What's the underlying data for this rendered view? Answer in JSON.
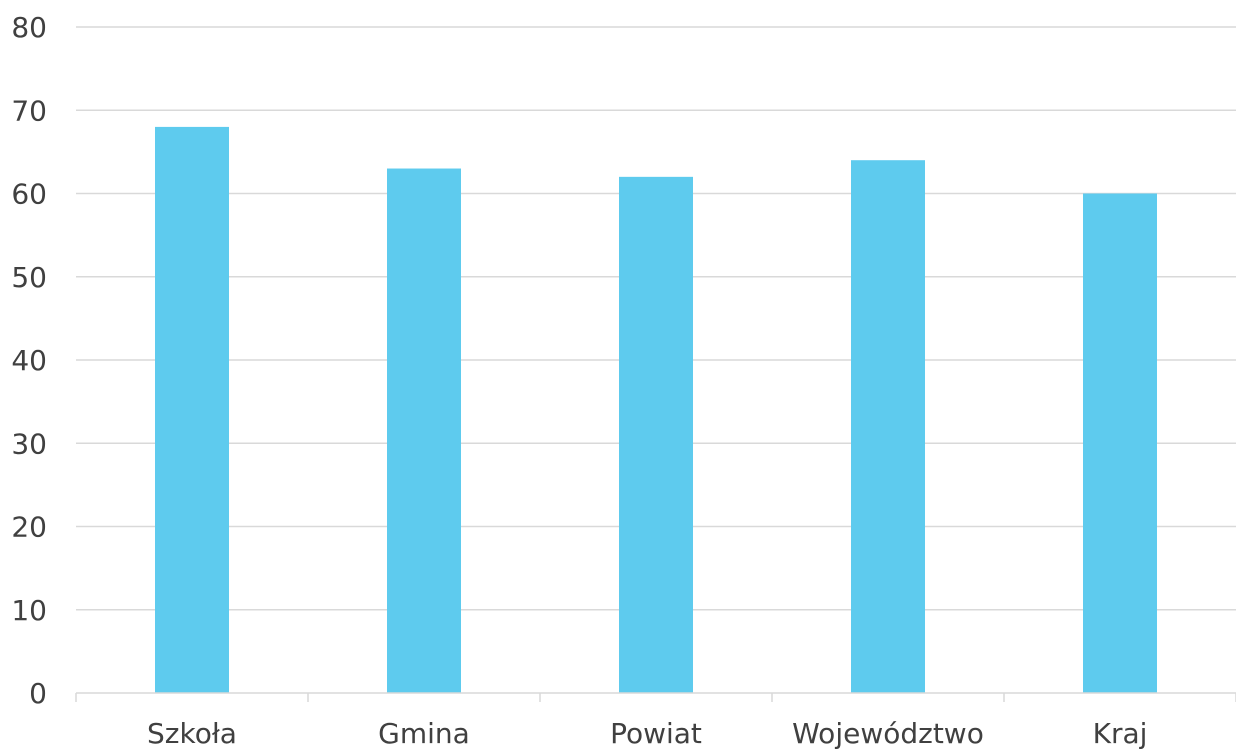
{
  "chart_data": {
    "type": "bar",
    "categories": [
      "Szkoła",
      "Gmina",
      "Powiat",
      "Województwo",
      "Kraj"
    ],
    "values": [
      68,
      63,
      62,
      64,
      60
    ],
    "ylim": [
      0,
      80
    ],
    "yticks": [
      0,
      10,
      20,
      30,
      40,
      50,
      60,
      70,
      80
    ],
    "grid": true,
    "bar_color": "#5ecbee",
    "grid_color": "#d9d9d9",
    "text_color": "#404040"
  }
}
